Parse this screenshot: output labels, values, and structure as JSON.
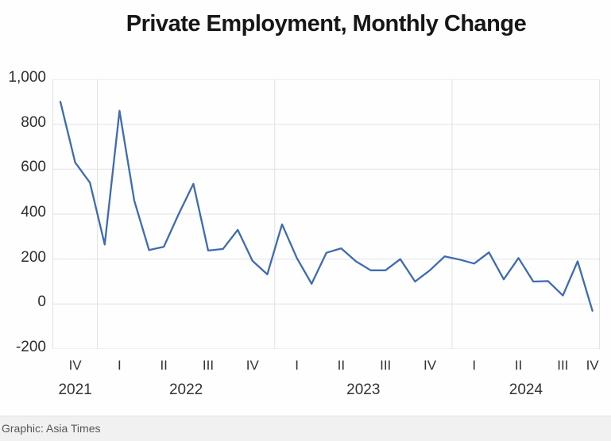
{
  "chart": {
    "title": "Private Employment, Monthly Change"
  },
  "footer": {
    "attribution": "Graphic: Asia Times"
  },
  "colors": {
    "line": "#3d6cb1",
    "grid": "#e2e2e2",
    "axis_text": "#333333",
    "title_text": "#161616",
    "footer_bg": "#f1f1f2",
    "footer_text": "#575757"
  },
  "chart_data": {
    "type": "line",
    "title": "Private Employment, Monthly Change",
    "xlabel": "",
    "ylabel": "",
    "ylim": [
      -200,
      1000
    ],
    "grid": true,
    "legend": false,
    "x": [
      "Oct 2021",
      "Nov 2021",
      "Dec 2021",
      "Jan 2022",
      "Feb 2022",
      "Mar 2022",
      "Apr 2022",
      "May 2022",
      "Jun 2022",
      "Jul 2022",
      "Aug 2022",
      "Sep 2022",
      "Oct 2022",
      "Nov 2022",
      "Dec 2022",
      "Jan 2023",
      "Feb 2023",
      "Mar 2023",
      "Apr 2023",
      "May 2023",
      "Jun 2023",
      "Jul 2023",
      "Aug 2023",
      "Sep 2023",
      "Oct 2023",
      "Nov 2023",
      "Dec 2023",
      "Jan 2024",
      "Feb 2024",
      "Mar 2024",
      "Apr 2024",
      "May 2024",
      "Jun 2024",
      "Jul 2024",
      "Aug 2024",
      "Sep 2024",
      "Oct 2024"
    ],
    "values": [
      900,
      630,
      540,
      265,
      860,
      460,
      240,
      255,
      400,
      535,
      238,
      245,
      330,
      192,
      132,
      355,
      205,
      90,
      228,
      248,
      190,
      150,
      150,
      200,
      100,
      150,
      212,
      198,
      180,
      230,
      110,
      205,
      100,
      102,
      38,
      190,
      -30
    ],
    "y_ticks": [
      1000,
      800,
      600,
      400,
      200,
      0,
      -200
    ],
    "y_tick_labels": [
      "1,000",
      "800",
      "600",
      "400",
      "200",
      "0",
      "-200"
    ],
    "quarter_ticks": [
      {
        "label": "IV",
        "month_index": 1
      },
      {
        "label": "I",
        "month_index": 4
      },
      {
        "label": "II",
        "month_index": 7
      },
      {
        "label": "III",
        "month_index": 10
      },
      {
        "label": "IV",
        "month_index": 13
      },
      {
        "label": "I",
        "month_index": 16
      },
      {
        "label": "II",
        "month_index": 19
      },
      {
        "label": "III",
        "month_index": 22
      },
      {
        "label": "IV",
        "month_index": 25
      },
      {
        "label": "I",
        "month_index": 28
      },
      {
        "label": "II",
        "month_index": 31
      },
      {
        "label": "III",
        "month_index": 34
      },
      {
        "label": "IV",
        "month_index": 36
      }
    ],
    "year_ticks": [
      {
        "label": "2021",
        "month_index": 1
      },
      {
        "label": "2022",
        "month_index": 8.5
      },
      {
        "label": "2023",
        "month_index": 20.5
      },
      {
        "label": "2024",
        "month_index": 31.5
      }
    ],
    "year_boundary_indices": [
      2.5,
      14.5,
      26.5
    ]
  }
}
